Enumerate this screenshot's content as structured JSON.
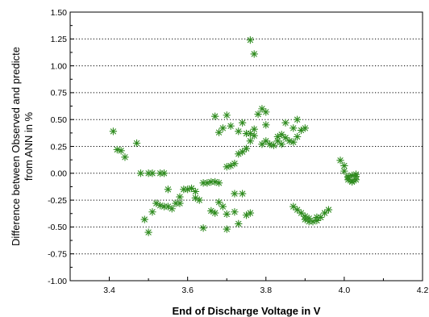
{
  "chart_data": {
    "type": "scatter",
    "title": "",
    "xlabel": "End of Discharge Voltage in V",
    "ylabel_lines": [
      "Difference between Observed and predicte",
      "from ANN in %"
    ],
    "xlim": [
      3.3,
      4.2
    ],
    "ylim": [
      -1.0,
      1.5
    ],
    "x_ticks": [
      "3.4",
      "3.6",
      "3.8",
      "4.0",
      "4.2"
    ],
    "y_ticks": [
      "-1.00",
      "-0.75",
      "-0.50",
      "-0.25",
      "0.00",
      "0.25",
      "0.50",
      "0.75",
      "1.00",
      "1.25",
      "1.50"
    ],
    "grid": "horizontal-dotted",
    "marker": "asterisk",
    "marker_color": "#2e8b1e",
    "series": [
      {
        "points": [
          [
            3.41,
            0.39
          ],
          [
            3.42,
            0.22
          ],
          [
            3.43,
            0.21
          ],
          [
            3.44,
            0.15
          ],
          [
            3.47,
            0.28
          ],
          [
            3.48,
            0.0
          ],
          [
            3.5,
            0.0
          ],
          [
            3.51,
            0.0
          ],
          [
            3.53,
            0.0
          ],
          [
            3.54,
            0.0
          ],
          [
            3.49,
            -0.43
          ],
          [
            3.5,
            -0.55
          ],
          [
            3.51,
            -0.36
          ],
          [
            3.52,
            -0.28
          ],
          [
            3.53,
            -0.3
          ],
          [
            3.54,
            -0.31
          ],
          [
            3.55,
            -0.31
          ],
          [
            3.56,
            -0.33
          ],
          [
            3.57,
            -0.28
          ],
          [
            3.58,
            -0.22
          ],
          [
            3.59,
            -0.15
          ],
          [
            3.6,
            -0.15
          ],
          [
            3.61,
            -0.14
          ],
          [
            3.62,
            -0.23
          ],
          [
            3.62,
            -0.17
          ],
          [
            3.63,
            -0.25
          ],
          [
            3.64,
            -0.09
          ],
          [
            3.65,
            -0.09
          ],
          [
            3.66,
            -0.08
          ],
          [
            3.67,
            -0.37
          ],
          [
            3.68,
            -0.27
          ],
          [
            3.69,
            -0.31
          ],
          [
            3.7,
            -0.38
          ],
          [
            3.55,
            -0.15
          ],
          [
            3.58,
            -0.28
          ],
          [
            3.64,
            -0.51
          ],
          [
            3.66,
            -0.35
          ],
          [
            3.67,
            -0.08
          ],
          [
            3.68,
            -0.09
          ],
          [
            3.7,
            -0.52
          ],
          [
            3.72,
            -0.36
          ],
          [
            3.73,
            -0.47
          ],
          [
            3.75,
            -0.39
          ],
          [
            3.76,
            -0.37
          ],
          [
            3.72,
            -0.19
          ],
          [
            3.74,
            -0.19
          ],
          [
            3.7,
            0.06
          ],
          [
            3.71,
            0.07
          ],
          [
            3.72,
            0.09
          ],
          [
            3.73,
            0.18
          ],
          [
            3.74,
            0.2
          ],
          [
            3.75,
            0.23
          ],
          [
            3.76,
            0.3
          ],
          [
            3.77,
            0.35
          ],
          [
            3.67,
            0.53
          ],
          [
            3.68,
            0.38
          ],
          [
            3.69,
            0.42
          ],
          [
            3.7,
            0.54
          ],
          [
            3.71,
            0.44
          ],
          [
            3.73,
            0.39
          ],
          [
            3.74,
            0.47
          ],
          [
            3.75,
            0.37
          ],
          [
            3.76,
            0.37
          ],
          [
            3.77,
            0.41
          ],
          [
            3.78,
            0.55
          ],
          [
            3.79,
            0.6
          ],
          [
            3.8,
            0.57
          ],
          [
            3.8,
            0.45
          ],
          [
            3.8,
            0.3
          ],
          [
            3.81,
            0.27
          ],
          [
            3.82,
            0.26
          ],
          [
            3.83,
            0.3
          ],
          [
            3.84,
            0.27
          ],
          [
            3.85,
            0.33
          ],
          [
            3.86,
            0.3
          ],
          [
            3.87,
            0.29
          ],
          [
            3.88,
            0.34
          ],
          [
            3.89,
            0.4
          ],
          [
            3.9,
            0.42
          ],
          [
            3.85,
            0.47
          ],
          [
            3.87,
            0.42
          ],
          [
            3.88,
            0.5
          ],
          [
            3.84,
            0.36
          ],
          [
            3.79,
            0.27
          ],
          [
            3.83,
            0.34
          ],
          [
            3.76,
            1.24
          ],
          [
            3.77,
            1.11
          ],
          [
            3.87,
            -0.31
          ],
          [
            3.88,
            -0.34
          ],
          [
            3.89,
            -0.37
          ],
          [
            3.9,
            -0.4
          ],
          [
            3.9,
            -0.43
          ],
          [
            3.91,
            -0.45
          ],
          [
            3.92,
            -0.45
          ],
          [
            3.93,
            -0.44
          ],
          [
            3.94,
            -0.41
          ],
          [
            3.95,
            -0.37
          ],
          [
            3.96,
            -0.34
          ],
          [
            3.91,
            -0.42
          ],
          [
            3.93,
            -0.41
          ],
          [
            3.99,
            0.12
          ],
          [
            4.0,
            0.07
          ],
          [
            4.0,
            0.02
          ],
          [
            4.01,
            -0.03
          ],
          [
            4.01,
            -0.06
          ],
          [
            4.02,
            -0.07
          ],
          [
            4.02,
            -0.08
          ],
          [
            4.03,
            -0.06
          ],
          [
            4.03,
            -0.03
          ],
          [
            4.03,
            -0.01
          ],
          [
            4.02,
            -0.02
          ],
          [
            4.01,
            -0.04
          ]
        ]
      }
    ]
  }
}
